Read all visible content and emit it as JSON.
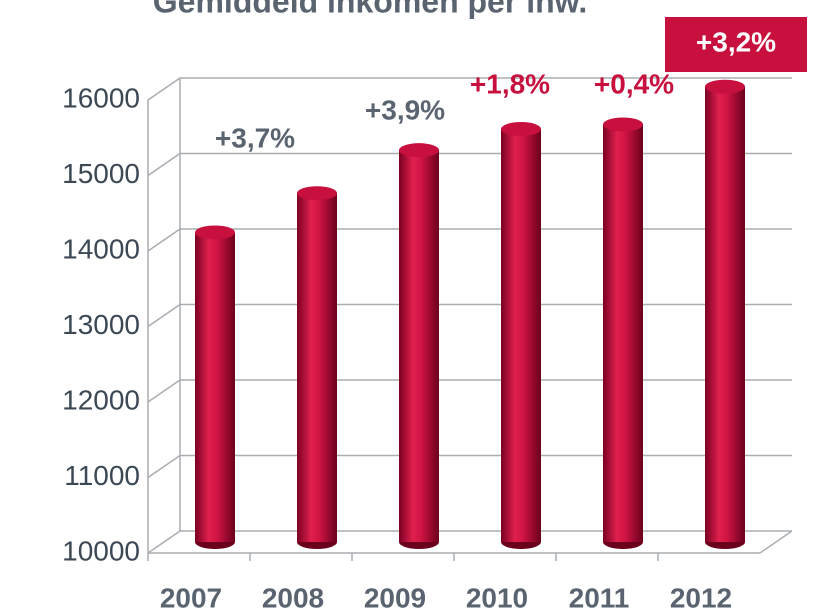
{
  "chart_data": {
    "type": "bar",
    "title": "Gemiddeld inkomen per inw.",
    "categories": [
      "2007",
      "2008",
      "2009",
      "2010",
      "2011",
      "2012"
    ],
    "values": [
      14100,
      14620,
      15190,
      15470,
      15530,
      16030
    ],
    "color": "#c8103e",
    "ylim": [
      10000,
      16000
    ],
    "yticks": [
      10000,
      11000,
      12000,
      13000,
      14000,
      15000,
      16000
    ],
    "grid": true,
    "annotations": [
      {
        "text": "+3,7%",
        "color": "#5a6470"
      },
      {
        "text": "+3,9%",
        "color": "#5a6470"
      },
      {
        "text": "+1,8%",
        "color": "#c8103e"
      },
      {
        "text": "+0,4%",
        "color": "#c8103e"
      },
      {
        "text": "+3,2%",
        "color": "#ffffff",
        "background": "#c8103e"
      }
    ]
  }
}
